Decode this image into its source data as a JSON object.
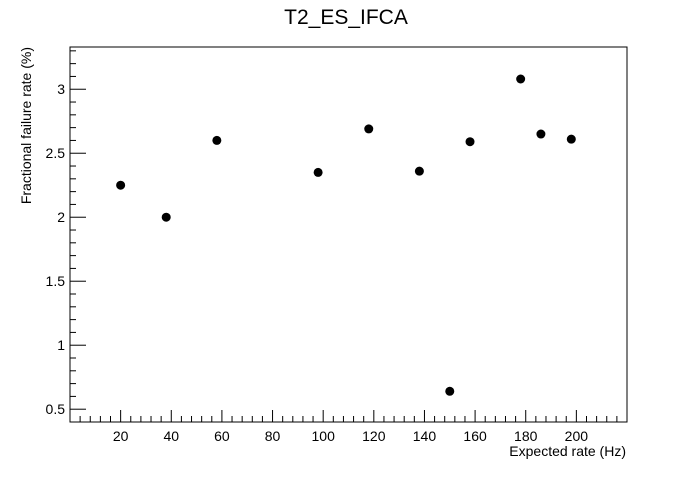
{
  "chart_data": {
    "type": "scatter",
    "title": "T2_ES_IFCA",
    "xlabel": "Expected rate (Hz)",
    "ylabel": "Fractional failure rate (%)",
    "xlim": [
      0,
      220
    ],
    "ylim": [
      0.4,
      3.33
    ],
    "x_ticks": [
      20,
      40,
      60,
      80,
      100,
      120,
      140,
      160,
      180,
      200
    ],
    "x_tick_labels": [
      "20",
      "40",
      "60",
      "80",
      "100",
      "120",
      "140",
      "160",
      "180",
      "200"
    ],
    "y_ticks": [
      0.5,
      1,
      1.5,
      2,
      2.5,
      3
    ],
    "y_tick_labels": [
      "0.5",
      "1",
      "1.5",
      "2",
      "2.5",
      "3"
    ],
    "grid": false,
    "legend": "none",
    "marker_color": "#000000",
    "series": [
      {
        "points": [
          {
            "x": 20,
            "y": 2.25
          },
          {
            "x": 38,
            "y": 2.0
          },
          {
            "x": 58,
            "y": 2.6
          },
          {
            "x": 98,
            "y": 2.35
          },
          {
            "x": 118,
            "y": 2.69
          },
          {
            "x": 138,
            "y": 2.36
          },
          {
            "x": 150,
            "y": 0.64
          },
          {
            "x": 158,
            "y": 2.59
          },
          {
            "x": 178,
            "y": 3.08
          },
          {
            "x": 186,
            "y": 2.65
          },
          {
            "x": 198,
            "y": 2.61
          }
        ]
      }
    ]
  }
}
